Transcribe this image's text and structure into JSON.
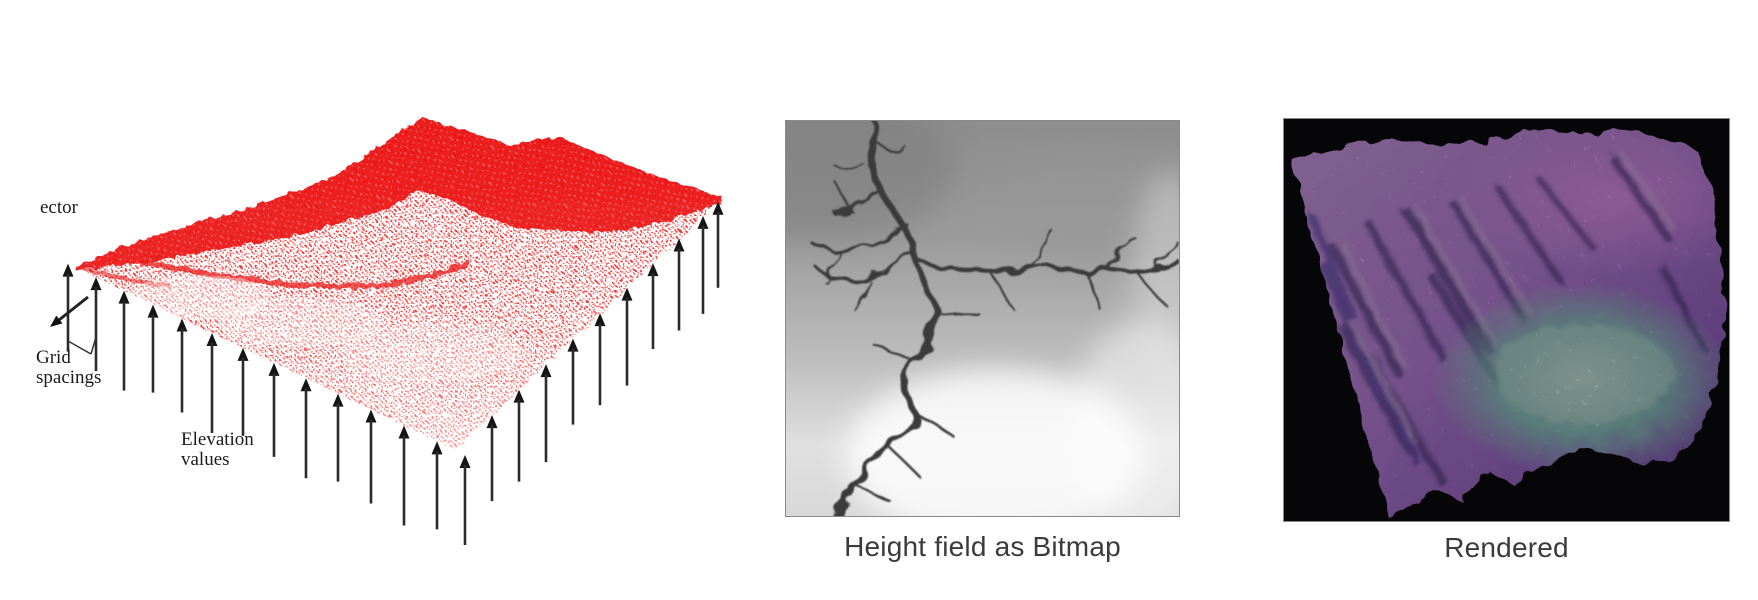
{
  "figure": {
    "diagram": {
      "label_vector": "ector",
      "label_grid_line1": "Grid",
      "label_grid_line2": "spacings",
      "label_elevation_line1": "Elevation",
      "label_elevation_line2": "values",
      "mesh_color": "#ee1111",
      "arrow_color": "#2b2b2b"
    },
    "bitmap_panel": {
      "caption": "Height field as Bitmap"
    },
    "rendered_panel": {
      "caption": "Rendered",
      "background": "#060608",
      "terrain_purple": "#b67fe0",
      "terrain_cyan": "#a5ead2"
    },
    "caption_color": "#3b3b3e",
    "page_background": "#ffffff"
  }
}
